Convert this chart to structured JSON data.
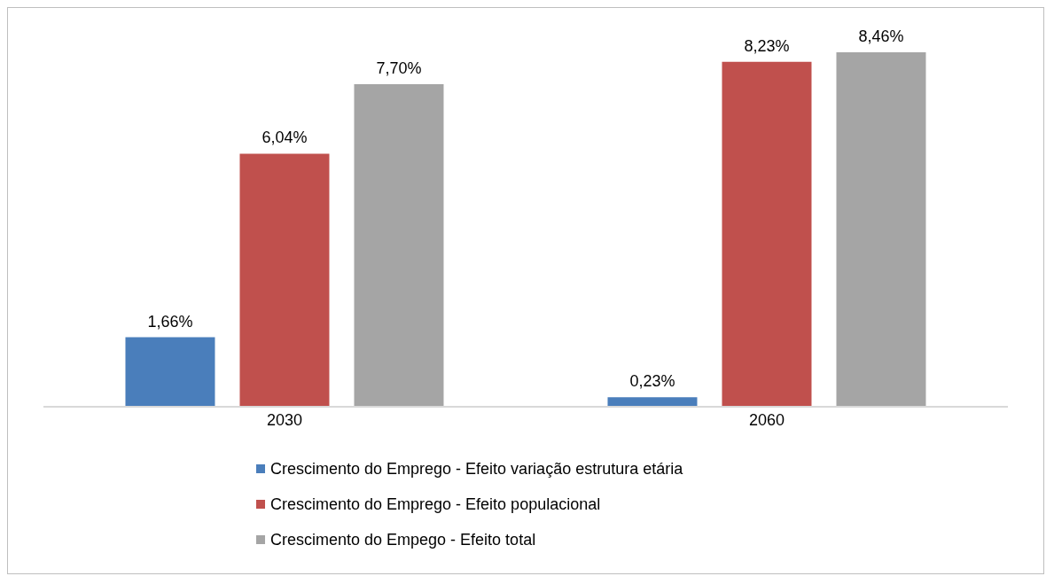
{
  "chart_data": {
    "type": "bar",
    "categories": [
      "2030",
      "2060"
    ],
    "series": [
      {
        "name": "Crescimento do Emprego - Efeito variação estrutura etária",
        "color": "#4a7ebb",
        "values": [
          1.66,
          0.23
        ],
        "value_labels": [
          "1,66%",
          "0,23%"
        ]
      },
      {
        "name": "Crescimento do Emprego - Efeito populacional",
        "color": "#c0504d",
        "values": [
          6.04,
          8.23
        ],
        "value_labels": [
          "6,04%",
          "8,23%"
        ]
      },
      {
        "name": "Crescimento do Empego - Efeito total",
        "color": "#a5a5a5",
        "values": [
          7.7,
          8.46
        ],
        "value_labels": [
          "7,70%",
          "8,46%"
        ]
      }
    ],
    "legend": "bottom",
    "grid": false
  }
}
